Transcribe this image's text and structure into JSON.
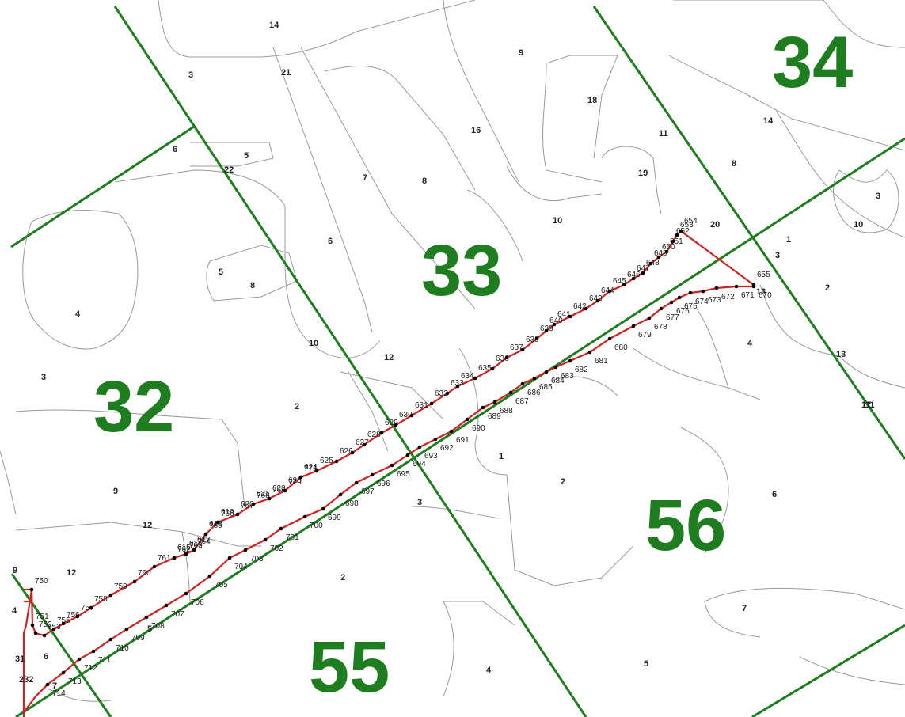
{
  "map_title": "",
  "sheet_numbers": [
    "32",
    "33",
    "34",
    "55",
    "56"
  ],
  "parcel_numbers": [
    "14",
    "9",
    "3",
    "21",
    "18",
    "16",
    "14",
    "11",
    "19",
    "8",
    "22",
    "6",
    "5",
    "7",
    "8",
    "10",
    "20",
    "3",
    "10",
    "1",
    "2",
    "6",
    "5",
    "8",
    "4",
    "10",
    "12",
    "4",
    "3",
    "2",
    "9",
    "13",
    "12",
    "1",
    "2",
    "3",
    "17",
    "6",
    "7",
    "4",
    "5",
    "2",
    "12",
    "11",
    "5",
    "6",
    "7",
    "31",
    "232",
    "4",
    "9",
    "3",
    "13"
  ],
  "vertex_labels_upper": [
    "615",
    "616",
    "617",
    "618",
    "619",
    "620",
    "621",
    "622",
    "623",
    "624",
    "625",
    "626",
    "627",
    "628",
    "629",
    "630",
    "631",
    "632",
    "633",
    "634",
    "635",
    "636",
    "637",
    "638",
    "639",
    "640",
    "641",
    "642",
    "643",
    "644",
    "645",
    "646",
    "647",
    "648",
    "649",
    "650",
    "651",
    "652",
    "653",
    "654",
    "655",
    "656",
    "657",
    "658",
    "659",
    "660",
    "661",
    "662",
    "663",
    "664",
    "665",
    "666",
    "667",
    "668",
    "669"
  ],
  "vertex_labels_lower": [
    "670",
    "671",
    "672",
    "673",
    "674",
    "675",
    "676",
    "677",
    "678",
    "679",
    "680",
    "681",
    "682",
    "683",
    "684",
    "685",
    "686",
    "687",
    "688",
    "689",
    "690",
    "691",
    "692",
    "693",
    "694",
    "695",
    "696",
    "697",
    "698",
    "699",
    "700",
    "701",
    "702",
    "703",
    "704",
    "705",
    "706",
    "707",
    "708",
    "709",
    "710",
    "711",
    "712",
    "713",
    "714",
    "715",
    "716",
    "717",
    "718",
    "719",
    "720",
    "721",
    "722",
    "723",
    "724",
    "725",
    "726",
    "727",
    "728",
    "729",
    "730",
    "731",
    "732",
    "733",
    "734",
    "735",
    "736",
    "737",
    "738",
    "739",
    "740",
    "741",
    "742",
    "743",
    "744",
    "745"
  ],
  "vertex_labels_west": [
    "750",
    "751",
    "752",
    "753",
    "755",
    "756",
    "757",
    "758",
    "759",
    "760",
    "761",
    "762",
    "763",
    "764",
    "765",
    "766",
    "767",
    "768",
    "769",
    "770",
    "771"
  ],
  "colors": {
    "sheet_line": "#1e7d1e",
    "route_line": "#d42020",
    "parcel_line": "#9a9a9a"
  }
}
